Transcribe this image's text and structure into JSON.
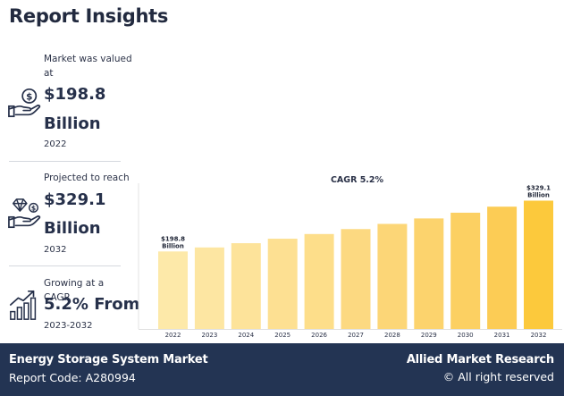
{
  "page_title": "Report Insights",
  "stats": [
    {
      "label": "Market was valued at",
      "value": "$198.8",
      "unit": "Billion",
      "year": "2022",
      "icon": "money-hand-icon"
    },
    {
      "label": "Projected to reach",
      "value": "$329.1",
      "unit": "Billion",
      "year": "2032",
      "icon": "diamond-hand-icon"
    },
    {
      "label": "Growing at a CAGR",
      "value": "5.2% From",
      "unit": "",
      "year": "2023-2032",
      "icon": "growth-chart-icon"
    }
  ],
  "footer": {
    "market_name": "Energy Storage System Market",
    "report_code": "Report Code: A280994",
    "brand": "Allied Market Research",
    "rights": "© All right reserved"
  },
  "chart_data": {
    "type": "bar",
    "title": "CAGR 5.2%",
    "categories": [
      "2022",
      "2023",
      "2024",
      "2025",
      "2026",
      "2027",
      "2028",
      "2029",
      "2030",
      "2031",
      "2032"
    ],
    "values": [
      198.8,
      209.1,
      220.0,
      231.5,
      243.5,
      256.2,
      269.5,
      283.5,
      298.2,
      313.7,
      329.1
    ],
    "value_labels": [
      {
        "index": 0,
        "line1": "$198.8",
        "line2": "Billion"
      },
      {
        "index": 10,
        "line1": "$329.1",
        "line2": "Billion"
      }
    ],
    "bar_colors": [
      "#fde9a9",
      "#fde6a2",
      "#fde39a",
      "#fde092",
      "#fdde8a",
      "#fcd981",
      "#fcd677",
      "#fcd36d",
      "#fcd062",
      "#fccc55",
      "#fcc93c"
    ],
    "ylim": [
      0,
      360
    ],
    "grid": false,
    "xlabel": "",
    "ylabel": ""
  }
}
